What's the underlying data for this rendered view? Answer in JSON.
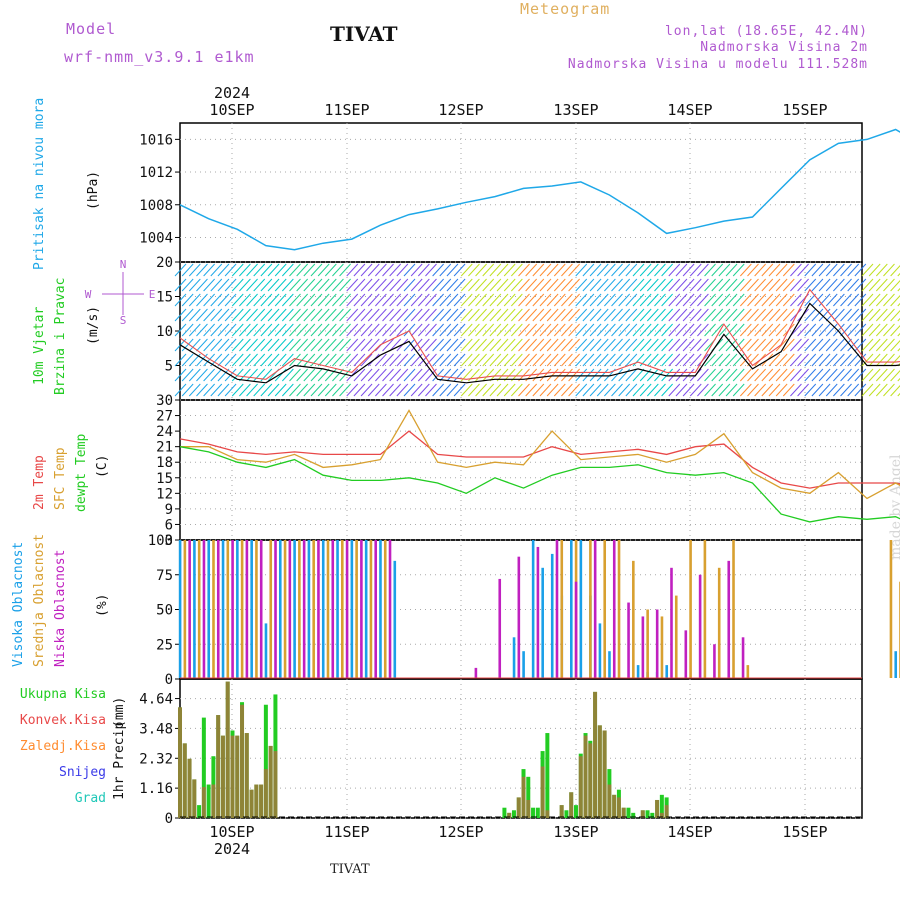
{
  "header": {
    "model_label": "Model",
    "model_version": "wrf-nmm_v3.9.1 e1km",
    "city": "TIVAT",
    "meteogram": "Meteogram",
    "lonlat": "lon,lat (18.65E, 42.4N)",
    "altitude": "Nadmorska Visina 2m",
    "model_altitude": "Nadmorska Visina u modelu 111.528m",
    "year": "2024"
  },
  "footer": {
    "city": "TIVAT",
    "year": "2024",
    "made_by": "made by Angel"
  },
  "colors": {
    "pressure": "#1fa8e8",
    "wind_speed": "#000000",
    "gust": "#e85050",
    "t2m": "#e84848",
    "sfc": "#d8a030",
    "dewpt": "#22cc22",
    "high_cloud": "#1aa0e8",
    "mid_cloud": "#d8a030",
    "low_cloud": "#c020c0",
    "total_precip": "#22cc22",
    "conv_precip": "#e84848",
    "grid": "#aaaaaa"
  },
  "chart_data": [
    {
      "type": "line",
      "panel": "pressure",
      "ylabel_a": "Pritisak na nivou mora",
      "ylabel_b": "(hPa)",
      "ylim": [
        1001,
        1018
      ],
      "yticks": [
        "1004",
        "1008",
        "1012",
        "1016"
      ],
      "xticks": [
        "10SEP",
        "11SEP",
        "12SEP",
        "13SEP",
        "14SEP",
        "15SEP"
      ],
      "x_hours": [
        0,
        6,
        12,
        18,
        24,
        30,
        36,
        42,
        48,
        54,
        60,
        66,
        72,
        78,
        84,
        90,
        96,
        102,
        108,
        114,
        120,
        126,
        132,
        138,
        144,
        150,
        156,
        162
      ],
      "series": [
        {
          "values": [
            1008,
            1006.3,
            1005,
            1003,
            1002.5,
            1003.3,
            1003.8,
            1005.5,
            1006.8,
            1007.5,
            1008.3,
            1009,
            1010,
            1010.3,
            1010.8,
            1009.2,
            1007,
            1004.5,
            1005.2,
            1006,
            1006.5,
            1010,
            1013.5,
            1015.5,
            1016,
            1017.2,
            1015.2,
            1015
          ]
        }
      ]
    },
    {
      "type": "line",
      "panel": "wind",
      "ylabel_a": "10m Vjetar",
      "ylabel_b": "Brzina i Pravac",
      "ylabel_c": "(m/s)",
      "legend_arrows": [
        "N",
        "W",
        "E",
        "S"
      ],
      "ylim": [
        0,
        20
      ],
      "yticks": [
        "5",
        "10",
        "15",
        "20"
      ],
      "x_hours": [
        0,
        6,
        12,
        18,
        24,
        30,
        36,
        42,
        48,
        54,
        60,
        66,
        72,
        78,
        84,
        90,
        96,
        102,
        108,
        114,
        120,
        126,
        132,
        138,
        144,
        150,
        156,
        162
      ],
      "series": [
        {
          "name": "speed",
          "values": [
            8,
            5.5,
            3,
            2.5,
            5,
            4.5,
            3.5,
            6.5,
            8.5,
            3,
            2.5,
            3,
            3,
            3.5,
            3.5,
            3.5,
            4.5,
            3.5,
            3.5,
            9.5,
            4.5,
            7,
            14,
            10,
            5,
            5,
            5.5,
            3
          ]
        },
        {
          "name": "gust",
          "values": [
            9,
            6,
            3.5,
            3,
            6,
            5,
            4,
            8,
            10,
            3.5,
            3,
            3.5,
            3.5,
            4,
            4,
            4,
            5.5,
            4,
            4,
            11,
            5,
            8,
            16,
            11,
            5.5,
            5.5,
            6,
            3.5
          ]
        }
      ]
    },
    {
      "type": "line",
      "panel": "temperature",
      "ylabel_a": "2m Temp",
      "ylabel_b": "SFC Temp",
      "ylabel_c": "dewpt Temp",
      "ylabel_d": "(C)",
      "ylim": [
        3,
        30
      ],
      "yticks": [
        "3",
        "6",
        "9",
        "12",
        "15",
        "18",
        "21",
        "24",
        "27",
        "30"
      ],
      "x_hours": [
        0,
        6,
        12,
        18,
        24,
        30,
        36,
        42,
        48,
        54,
        60,
        66,
        72,
        78,
        84,
        90,
        96,
        102,
        108,
        114,
        120,
        126,
        132,
        138,
        144,
        150,
        156,
        162
      ],
      "series": [
        {
          "name": "2m Temp",
          "values": [
            22.5,
            21.5,
            20,
            19.5,
            20,
            19.5,
            19.5,
            19.5,
            24,
            19.5,
            19,
            19,
            19,
            21,
            19.5,
            20,
            20.5,
            19.5,
            21,
            21.5,
            17,
            14,
            13,
            14,
            14,
            14,
            13,
            17.5
          ]
        },
        {
          "name": "SFC Temp",
          "values": [
            21,
            21,
            18.5,
            18,
            19.5,
            17,
            17.5,
            18.5,
            28,
            18,
            17,
            18,
            17.5,
            24,
            18.5,
            19,
            19.5,
            18,
            19.5,
            23.5,
            16,
            13,
            12,
            16,
            11,
            14,
            11,
            22
          ]
        },
        {
          "name": "dewpt Temp",
          "values": [
            21,
            20,
            18,
            17,
            18.5,
            15.5,
            14.5,
            14.5,
            15,
            14,
            12,
            15,
            13,
            15.5,
            17,
            17,
            17.5,
            16,
            15.5,
            16,
            14,
            8,
            6.5,
            7.5,
            7,
            7.5,
            5,
            10
          ]
        }
      ]
    },
    {
      "type": "bar",
      "panel": "clouds",
      "ylabel_a": "Visoka Oblacnost",
      "ylabel_b": "Srednja Oblacnost",
      "ylabel_c": "Niska Oblacnost",
      "ylabel_d": "(%)",
      "ylim": [
        0,
        100
      ],
      "yticks": [
        "0",
        "25",
        "50",
        "75",
        "100"
      ],
      "series": [
        {
          "name": "Visoka Oblacnost",
          "x_hours": [
            0,
            3,
            6,
            9,
            12,
            15,
            18,
            21,
            24,
            27,
            30,
            33,
            36,
            39,
            42,
            45,
            70,
            72,
            74,
            76,
            78,
            80,
            82,
            84,
            86,
            88,
            90,
            96,
            98,
            100,
            102,
            150
          ],
          "values": [
            100,
            100,
            100,
            100,
            100,
            100,
            40,
            100,
            100,
            100,
            100,
            100,
            100,
            100,
            100,
            85,
            30,
            20,
            100,
            80,
            90,
            60,
            100,
            100,
            60,
            40,
            20,
            10,
            5,
            5,
            10,
            20
          ]
        },
        {
          "name": "Srednja Oblacnost",
          "x_hours": [
            1,
            4,
            7,
            10,
            13,
            16,
            19,
            22,
            25,
            28,
            31,
            34,
            37,
            40,
            43,
            80,
            83,
            86,
            89,
            92,
            95,
            98,
            101,
            104,
            107,
            110,
            113,
            116,
            119,
            149,
            151,
            153
          ],
          "values": [
            100,
            100,
            100,
            100,
            100,
            100,
            100,
            100,
            100,
            100,
            100,
            100,
            100,
            100,
            100,
            100,
            100,
            100,
            100,
            100,
            85,
            50,
            45,
            60,
            100,
            100,
            80,
            100,
            10,
            100,
            70,
            55
          ]
        },
        {
          "name": "Niska Oblacnost",
          "x_hours": [
            2,
            5,
            8,
            11,
            14,
            17,
            20,
            23,
            26,
            29,
            32,
            35,
            38,
            41,
            44,
            62,
            67,
            71,
            75,
            79,
            83,
            87,
            91,
            94,
            97,
            100,
            103,
            106,
            109,
            112,
            115,
            118
          ],
          "values": [
            100,
            100,
            100,
            100,
            100,
            100,
            100,
            100,
            100,
            100,
            100,
            100,
            100,
            100,
            100,
            8,
            72,
            88,
            95,
            100,
            70,
            100,
            100,
            55,
            45,
            50,
            80,
            35,
            75,
            25,
            85,
            30
          ]
        }
      ]
    },
    {
      "type": "bar",
      "panel": "precipitation",
      "ylabel_a": "Ukupna Kisa",
      "ylabel_b": "Konvek.Kisa",
      "ylabel_c": "Zaledj.Kisa",
      "ylabel_d": "Snijeg",
      "ylabel_e": "Grad",
      "ylabel_f": "1hr Precip",
      "ylabel_g": "(mm)",
      "ylim": [
        0,
        5.4
      ],
      "yticks": [
        "0",
        "1.16",
        "2.32",
        "3.48",
        "4.64"
      ],
      "series": [
        {
          "name": "Ukupna Kisa",
          "x_hours": [
            0,
            1,
            2,
            3,
            4,
            5,
            6,
            7,
            8,
            9,
            10,
            11,
            12,
            13,
            14,
            15,
            16,
            17,
            18,
            19,
            20,
            68,
            69,
            70,
            71,
            72,
            73,
            74,
            75,
            76,
            77,
            80,
            81,
            82,
            83,
            84,
            85,
            86,
            87,
            88,
            89,
            90,
            91,
            92,
            93,
            94,
            95,
            97,
            98,
            99,
            100,
            101,
            102
          ],
          "values": [
            4.3,
            2.9,
            2.3,
            1.5,
            0.5,
            3.9,
            1.3,
            2.4,
            4.0,
            3.2,
            5.3,
            3.4,
            3.2,
            4.5,
            3.3,
            1.1,
            1.3,
            1.3,
            4.4,
            2.8,
            4.8,
            0.4,
            0.2,
            0.3,
            0.8,
            1.9,
            1.6,
            0.4,
            0.4,
            2.6,
            3.3,
            0.5,
            0.3,
            1.0,
            0.5,
            2.5,
            3.3,
            3.0,
            4.9,
            3.6,
            3.4,
            1.9,
            0.9,
            1.1,
            0.4,
            0.4,
            0.2,
            0.3,
            0.3,
            0.2,
            0.7,
            0.9,
            0.8
          ]
        },
        {
          "name": "Konvek.Kisa",
          "x_hours": [
            0,
            1,
            2,
            3,
            5,
            7,
            8,
            9,
            10,
            11,
            12,
            13,
            14,
            15,
            16,
            17,
            18,
            19,
            20,
            69,
            71,
            72,
            73,
            76,
            77,
            80,
            82,
            84,
            85,
            86,
            87,
            88,
            89,
            90,
            91,
            92,
            93,
            97,
            100,
            101,
            102
          ],
          "values": [
            4.3,
            2.9,
            2.3,
            1.5,
            1.2,
            1.3,
            4.0,
            3.2,
            5.3,
            3.2,
            3.2,
            4.4,
            3.3,
            1.1,
            1.3,
            1.3,
            1.9,
            2.8,
            2.6,
            0.2,
            0.8,
            1.6,
            0.7,
            2.0,
            0.3,
            0.5,
            1.0,
            2.4,
            3.2,
            2.9,
            4.9,
            3.6,
            3.4,
            1.3,
            0.9,
            0.8,
            0.4,
            0.3,
            0.7,
            0.2,
            0.5
          ]
        }
      ]
    }
  ]
}
